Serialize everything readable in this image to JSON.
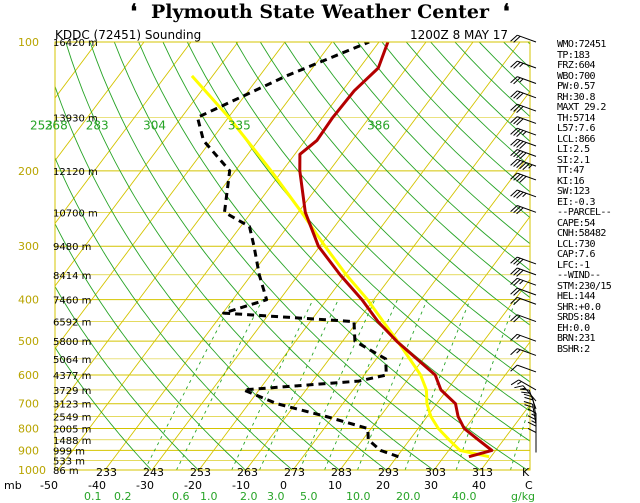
{
  "banner": {
    "title": "Plymouth State Weather Center",
    "left_glyph": "❛",
    "right_glyph": "❛"
  },
  "header": {
    "station": "KDDC (72451) Sounding",
    "time": "1200Z  8 MAY 17"
  },
  "colors": {
    "isobar": "#b8a400",
    "grid_yellow": "#d4c400",
    "dry_adiabat": "#27a427",
    "mixing_ratio": "#27a427",
    "temperature": "#b40000",
    "dewpoint": "#000000",
    "parcel": "#ffff00",
    "banner_text": "#000000"
  },
  "stats": [
    "WMO:72451",
    "TP:183",
    "FRZ:604",
    "WBO:700",
    "PW:0.57",
    "RH:30.8",
    "MAXT 29.2",
    "TH:5714",
    "L57:7.6",
    "LCL:866",
    "LI:2.5",
    "SI:2.1",
    "TT:47",
    "KI:16",
    "SW:123",
    "EI:-0.3",
    "--PARCEL--",
    "CAPE:54",
    "CNH:58482",
    "LCL:730",
    "CAP:7.6",
    "LFC:-1",
    "--WIND--",
    "STM:230/15",
    "HEL:144",
    "SHR:+0.0",
    "SRDS:84",
    "EH:0.0",
    "BRN:231",
    "BSHR:2"
  ],
  "chart_data": {
    "type": "skew-t log-p sounding",
    "pressure_axis": {
      "unit": "mb",
      "levels": [
        100,
        200,
        300,
        400,
        500,
        600,
        700,
        800,
        900,
        1000
      ],
      "range": [
        1000,
        100
      ],
      "scale": "log"
    },
    "height_labels": [
      {
        "p": 100,
        "label": "16420 m"
      },
      {
        "p": 150,
        "label": "13930 m"
      },
      {
        "p": 200,
        "label": "12120 m"
      },
      {
        "p": 250,
        "label": "10700 m"
      },
      {
        "p": 300,
        "label": "9480 m"
      },
      {
        "p": 350,
        "label": "8414 m"
      },
      {
        "p": 400,
        "label": "7460 m"
      },
      {
        "p": 450,
        "label": "6592 m"
      },
      {
        "p": 500,
        "label": "5800 m"
      },
      {
        "p": 550,
        "label": "5064 m"
      },
      {
        "p": 600,
        "label": "4377 m"
      },
      {
        "p": 650,
        "label": "3729 m"
      },
      {
        "p": 700,
        "label": "3123 m"
      },
      {
        "p": 750,
        "label": "2549 m"
      },
      {
        "p": 800,
        "label": "2005 m"
      },
      {
        "p": 850,
        "label": "1488 m"
      },
      {
        "p": 900,
        "label": "999 m"
      },
      {
        "p": 950,
        "label": "533 m"
      },
      {
        "p": 1000,
        "label": "86 m"
      }
    ],
    "temperature_axis": {
      "unit": "C",
      "ticks": [
        -50,
        -40,
        -30,
        -20,
        -10,
        0,
        10,
        20,
        30,
        40
      ],
      "labels": [
        "-50",
        "-40",
        "-30",
        "-20",
        "-10",
        "0",
        "10",
        "20",
        "30",
        "40"
      ]
    },
    "kelvin_axis": {
      "unit": "K",
      "ticks": [
        233,
        243,
        253,
        263,
        273,
        283,
        293,
        303,
        313
      ]
    },
    "dry_adiabats_K": [
      253,
      268,
      283,
      304,
      335,
      386
    ],
    "mixing_ratio_axis": {
      "unit": "g/kg",
      "values": [
        0.1,
        0.2,
        0.6,
        1.0,
        2.0,
        3.0,
        5.0,
        10.0,
        20.0,
        40.0
      ],
      "labels": [
        "0.1",
        "0.2",
        "0.6",
        "1.0",
        "2.0",
        "3.0",
        "5.0",
        "10.0",
        "20.0",
        "40.0"
      ]
    },
    "series": [
      {
        "name": "Temperature",
        "style": "solid",
        "points": [
          {
            "p": 931,
            "t": 25.3
          },
          {
            "p": 900,
            "t": 29.2
          },
          {
            "p": 850,
            "t": 24.6
          },
          {
            "p": 800,
            "t": 19.8
          },
          {
            "p": 750,
            "t": 16.6
          },
          {
            "p": 700,
            "t": 14.0
          },
          {
            "p": 650,
            "t": 8.7
          },
          {
            "p": 600,
            "t": 5.1
          },
          {
            "p": 550,
            "t": -1.4
          },
          {
            "p": 500,
            "t": -8.5
          },
          {
            "p": 450,
            "t": -15.6
          },
          {
            "p": 400,
            "t": -22.5
          },
          {
            "p": 350,
            "t": -31.1
          },
          {
            "p": 300,
            "t": -40.3
          },
          {
            "p": 250,
            "t": -48.5
          },
          {
            "p": 200,
            "t": -56.3
          },
          {
            "p": 183,
            "t": -58.9
          },
          {
            "p": 170,
            "t": -57.5
          },
          {
            "p": 150,
            "t": -57.8
          },
          {
            "p": 130,
            "t": -57.5
          },
          {
            "p": 115,
            "t": -56.0
          },
          {
            "p": 100,
            "t": -58.1
          }
        ]
      },
      {
        "name": "Dewpoint",
        "style": "dashed",
        "points": [
          {
            "p": 931,
            "t": 10.3
          },
          {
            "p": 900,
            "t": 5.5
          },
          {
            "p": 850,
            "t": 1.2
          },
          {
            "p": 800,
            "t": -0.7
          },
          {
            "p": 750,
            "t": -11.5
          },
          {
            "p": 700,
            "t": -24.0
          },
          {
            "p": 650,
            "t": -33.3
          },
          {
            "p": 620,
            "t": -10.2
          },
          {
            "p": 600,
            "t": -5.3
          },
          {
            "p": 550,
            "t": -8.0
          },
          {
            "p": 500,
            "t": -17.4
          },
          {
            "p": 450,
            "t": -20.7
          },
          {
            "p": 430,
            "t": -49.8
          },
          {
            "p": 400,
            "t": -42.8
          },
          {
            "p": 350,
            "t": -48.3
          },
          {
            "p": 300,
            "t": -54.0
          },
          {
            "p": 270,
            "t": -58.1
          },
          {
            "p": 250,
            "t": -65.7
          },
          {
            "p": 200,
            "t": -71.2
          },
          {
            "p": 170,
            "t": -81.6
          },
          {
            "p": 150,
            "t": -86.6
          },
          {
            "p": 120,
            "t": -74.3
          },
          {
            "p": 100,
            "t": -62.1
          }
        ]
      },
      {
        "name": "Parcel",
        "style": "solid",
        "points": [
          {
            "p": 931,
            "t": 29.6
          },
          {
            "p": 900,
            "t": 22.4
          },
          {
            "p": 850,
            "t": 18.4
          },
          {
            "p": 800,
            "t": 14.3
          },
          {
            "p": 750,
            "t": 10.8
          },
          {
            "p": 700,
            "t": 7.9
          },
          {
            "p": 650,
            "t": 5.6
          },
          {
            "p": 600,
            "t": 2.0
          },
          {
            "p": 550,
            "t": -2.9
          },
          {
            "p": 500,
            "t": -8.3
          },
          {
            "p": 450,
            "t": -14.5
          },
          {
            "p": 400,
            "t": -21.3
          },
          {
            "p": 350,
            "t": -29.8
          },
          {
            "p": 300,
            "t": -38.9
          },
          {
            "p": 250,
            "t": -49.3
          },
          {
            "p": 200,
            "t": -62.4
          },
          {
            "p": 150,
            "t": -79.9
          },
          {
            "p": 120,
            "t": -94.4
          }
        ]
      }
    ],
    "wind_barbs": [
      {
        "p": 100,
        "dir": 250,
        "kt": 20
      },
      {
        "p": 115,
        "dir": 250,
        "kt": 25
      },
      {
        "p": 125,
        "dir": 250,
        "kt": 25
      },
      {
        "p": 135,
        "dir": 250,
        "kt": 30
      },
      {
        "p": 145,
        "dir": 250,
        "kt": 30
      },
      {
        "p": 155,
        "dir": 250,
        "kt": 30
      },
      {
        "p": 165,
        "dir": 250,
        "kt": 35
      },
      {
        "p": 175,
        "dir": 250,
        "kt": 40
      },
      {
        "p": 185,
        "dir": 250,
        "kt": 40
      },
      {
        "p": 195,
        "dir": 250,
        "kt": 55
      },
      {
        "p": 210,
        "dir": 250,
        "kt": 40
      },
      {
        "p": 230,
        "dir": 250,
        "kt": 35
      },
      {
        "p": 250,
        "dir": 250,
        "kt": 30
      },
      {
        "p": 330,
        "dir": 250,
        "kt": 30
      },
      {
        "p": 350,
        "dir": 250,
        "kt": 30
      },
      {
        "p": 370,
        "dir": 250,
        "kt": 25
      },
      {
        "p": 390,
        "dir": 250,
        "kt": 20
      },
      {
        "p": 410,
        "dir": 250,
        "kt": 20
      },
      {
        "p": 450,
        "dir": 250,
        "kt": 20
      },
      {
        "p": 500,
        "dir": 250,
        "kt": 15
      },
      {
        "p": 540,
        "dir": 250,
        "kt": 15
      },
      {
        "p": 590,
        "dir": 250,
        "kt": 10
      },
      {
        "p": 650,
        "dir": 240,
        "kt": 15
      },
      {
        "p": 690,
        "dir": 220,
        "kt": 15
      },
      {
        "p": 720,
        "dir": 200,
        "kt": 20
      },
      {
        "p": 750,
        "dir": 190,
        "kt": 20
      },
      {
        "p": 780,
        "dir": 190,
        "kt": 20
      },
      {
        "p": 820,
        "dir": 180,
        "kt": 15
      },
      {
        "p": 850,
        "dir": 180,
        "kt": 15
      },
      {
        "p": 880,
        "dir": 180,
        "kt": 10
      },
      {
        "p": 910,
        "dir": 180,
        "kt": 10
      }
    ],
    "axis_unit_labels": {
      "mb": "mb",
      "k": "K",
      "gkg": "g/kg"
    }
  }
}
